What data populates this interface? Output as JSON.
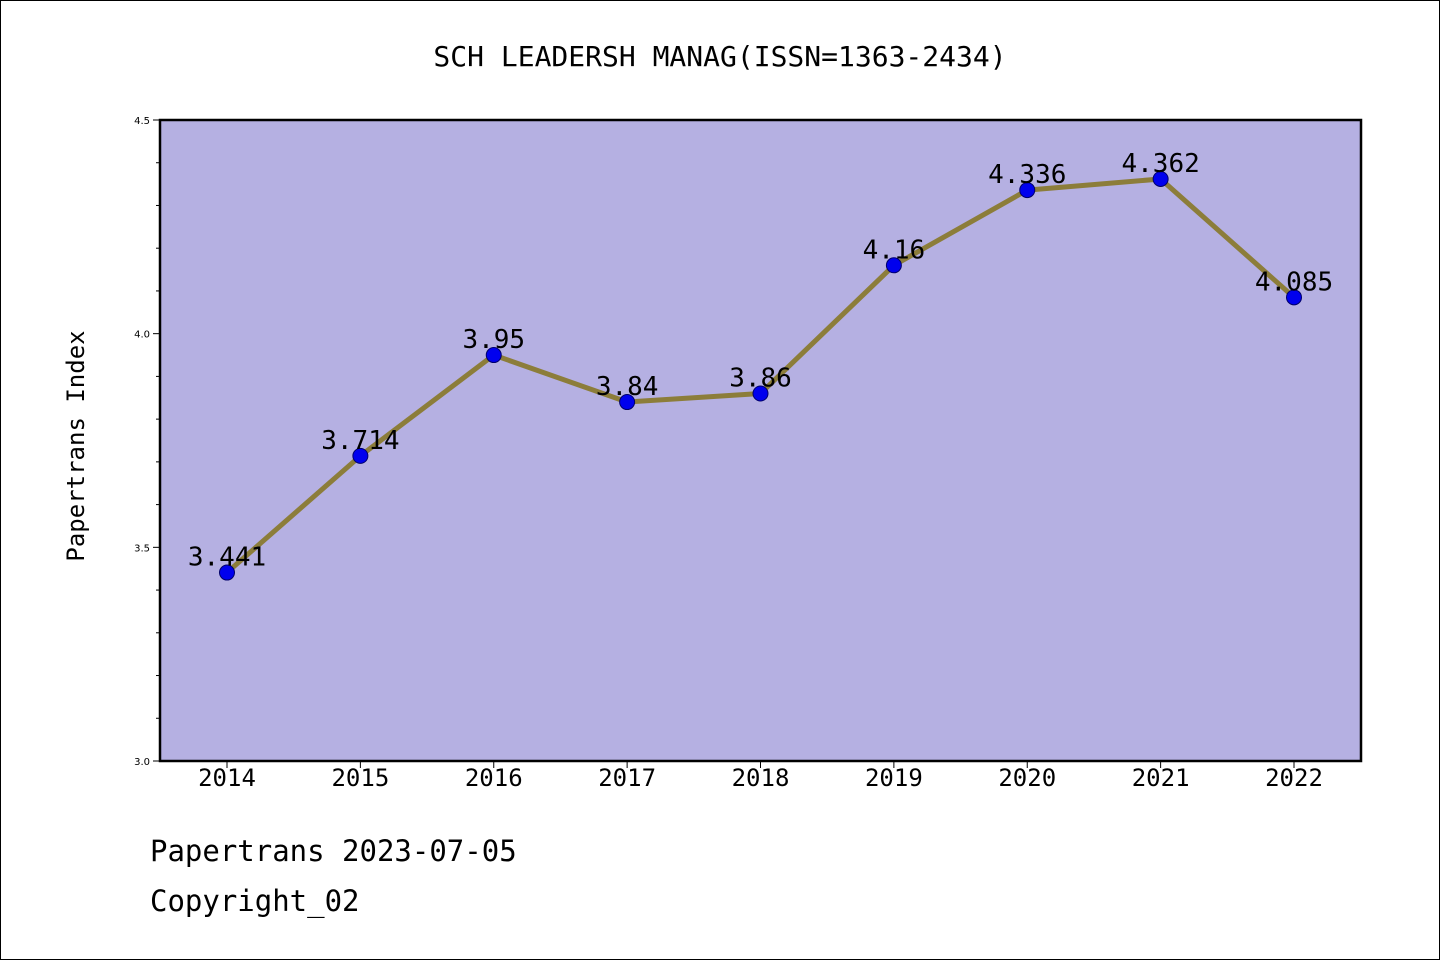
{
  "chart_data": {
    "type": "line",
    "title": "SCH LEADERSH MANAG(ISSN=1363-2434)",
    "xlabel": "",
    "ylabel": "Papertrans Index",
    "categories": [
      "2014",
      "2015",
      "2016",
      "2017",
      "2018",
      "2019",
      "2020",
      "2021",
      "2022"
    ],
    "values": [
      3.441,
      3.714,
      3.95,
      3.84,
      3.86,
      4.16,
      4.336,
      4.362,
      4.085
    ],
    "data_labels": [
      "3.441",
      "3.714",
      "3.95",
      "3.84",
      "3.86",
      "4.16",
      "4.336",
      "4.362",
      "4.085"
    ],
    "ylim": [
      3.0,
      4.5
    ],
    "yticks": [
      "3.0",
      "3.5",
      "4.0",
      "4.5"
    ],
    "grid": false,
    "colors": {
      "plot_background": "#b5b0e2",
      "line": "#8c7d3a",
      "marker": "#0000ee"
    }
  },
  "footer": {
    "line1": "Papertrans 2023-07-05",
    "line2": "Copyright_02"
  }
}
